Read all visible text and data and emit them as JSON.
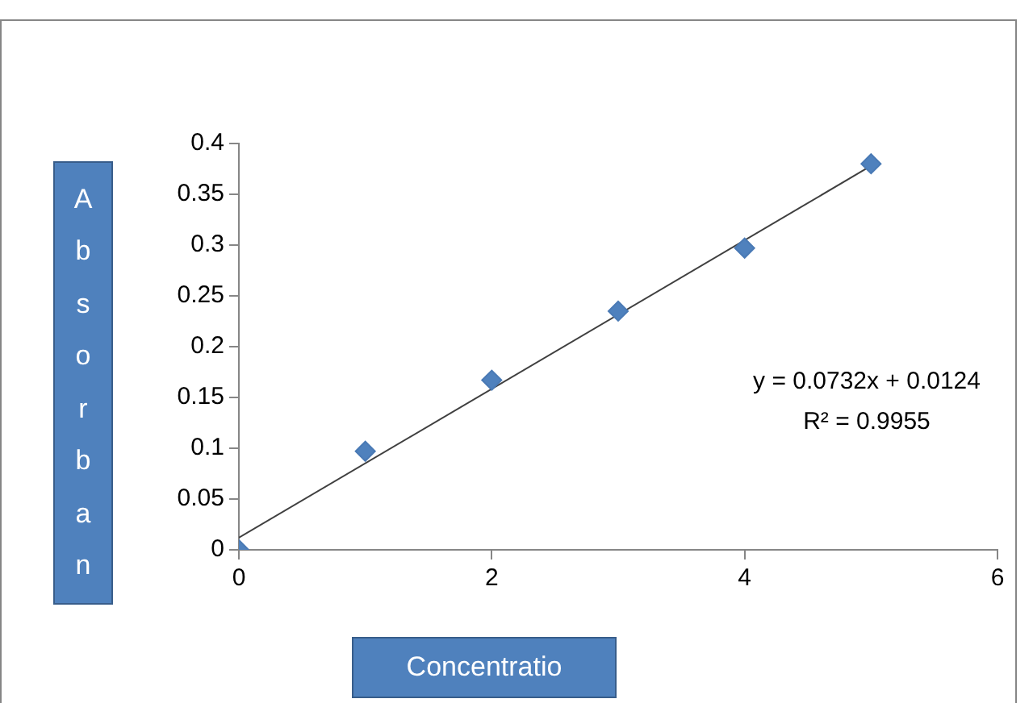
{
  "chart_data": {
    "type": "scatter",
    "xlabel": "Concentratio",
    "ylabel": "Absorban",
    "x": [
      0,
      1,
      2,
      3,
      4,
      5
    ],
    "series": [
      {
        "color": "#4f81bd",
        "marker": "diamond",
        "values": [
          0,
          0.097,
          0.167,
          0.235,
          0.297,
          0.38
        ]
      },
      {
        "type": "line",
        "color": "#404040",
        "marker": "none",
        "x": [
          0,
          5
        ],
        "values": [
          0.012,
          0.378
        ]
      }
    ],
    "xlim": [
      0,
      6
    ],
    "xticks": [
      0,
      2,
      4,
      6
    ],
    "ylim": [
      0,
      0.4
    ],
    "yticks": [
      0,
      0.05,
      0.1,
      0.15,
      0.2,
      0.25,
      0.3,
      0.35,
      0.4
    ],
    "grid": false,
    "legend": false,
    "annotations": [
      "y = 0.0732x + 0.0124",
      "R² = 0.9955"
    ]
  }
}
